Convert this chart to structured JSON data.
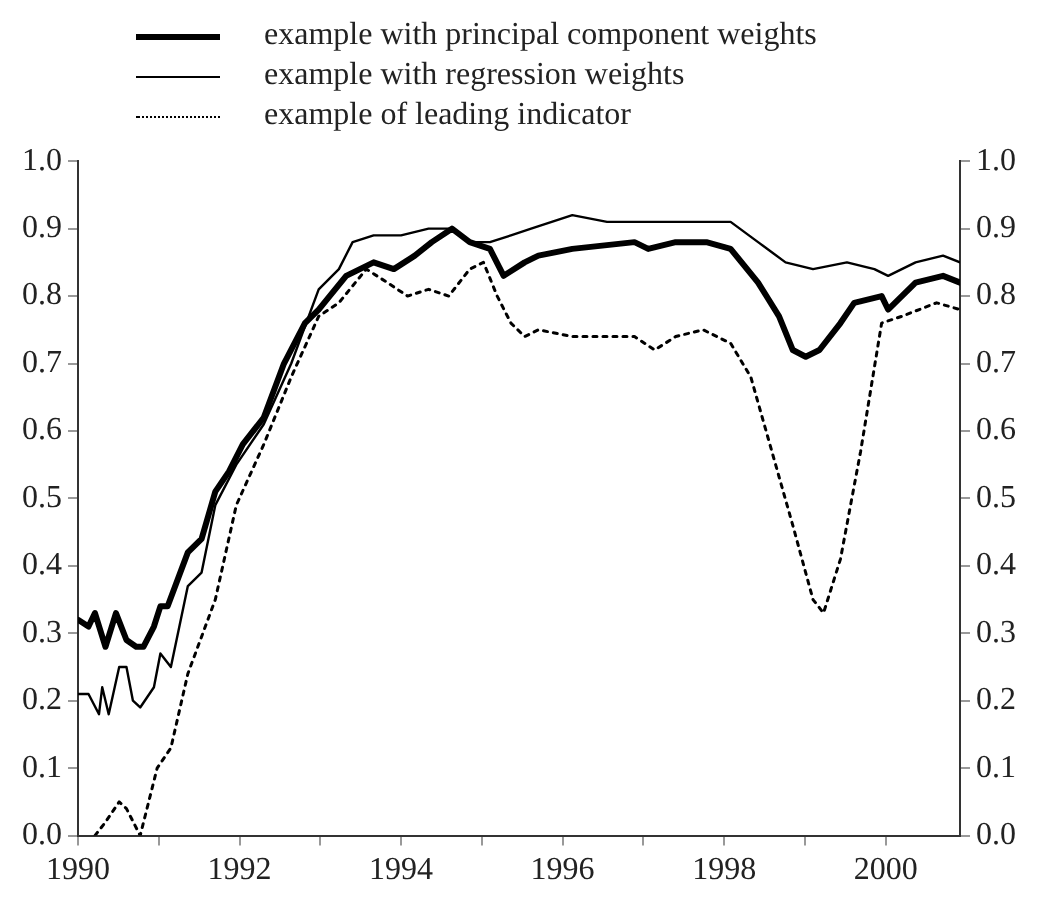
{
  "chart_data": {
    "type": "line",
    "legend": "top left",
    "grid": false,
    "marker": "none",
    "xlim": [
      1990,
      2000.92
    ],
    "xticks": [
      1990,
      {
        "value": 1991,
        "label": null
      },
      1992,
      {
        "value": 1993,
        "label": null
      },
      1994,
      {
        "value": 1995,
        "label": null
      },
      1996,
      {
        "value": 1997,
        "label": null
      },
      1998,
      {
        "value": 1999,
        "label": null
      },
      2000
    ],
    "ylim": [
      0,
      1
    ],
    "yticks": [
      {
        "value": 0,
        "label": "0.0"
      },
      0.1,
      0.2,
      0.3,
      0.4,
      0.5,
      0.6,
      0.7,
      0.8,
      0.9,
      {
        "value": 1,
        "label": "1.0"
      }
    ],
    "y2lim": [
      0,
      1
    ],
    "y2ticks": [
      {
        "value": 0,
        "label": "0.0"
      },
      0.1,
      0.2,
      0.3,
      0.4,
      0.5,
      0.6,
      0.7,
      0.8,
      0.9,
      {
        "value": 1,
        "label": "1.0"
      }
    ],
    "series": [
      {
        "name": "example with principal component weights",
        "color": "#000000",
        "line_style": "solid",
        "x": [
          1990.0,
          1990.13,
          1990.21,
          1990.34,
          1990.47,
          1990.6,
          1990.72,
          1990.81,
          1990.94,
          1991.02,
          1991.11,
          1991.36,
          1991.53,
          1991.7,
          1991.87,
          1992.04,
          1992.3,
          1992.55,
          1992.81,
          1992.98,
          1993.32,
          1993.66,
          1993.91,
          1994.17,
          1994.38,
          1994.63,
          1994.85,
          1995.1,
          1995.27,
          1995.53,
          1995.7,
          1996.12,
          1996.89,
          1997.06,
          1997.4,
          1997.78,
          1998.08,
          1998.42,
          1998.68,
          1998.85,
          1999.01,
          1999.18,
          1999.44,
          1999.61,
          1999.95,
          2000.03,
          2000.37,
          2000.71,
          2000.92
        ],
        "values": [
          0.32,
          0.31,
          0.33,
          0.28,
          0.33,
          0.29,
          0.28,
          0.28,
          0.31,
          0.34,
          0.34,
          0.42,
          0.44,
          0.51,
          0.54,
          0.58,
          0.62,
          0.7,
          0.76,
          0.78,
          0.83,
          0.85,
          0.84,
          0.86,
          0.88,
          0.9,
          0.88,
          0.87,
          0.83,
          0.85,
          0.86,
          0.87,
          0.88,
          0.87,
          0.88,
          0.88,
          0.87,
          0.82,
          0.77,
          0.72,
          0.71,
          0.72,
          0.76,
          0.79,
          0.8,
          0.78,
          0.82,
          0.83,
          0.82
        ]
      },
      {
        "name": "example with regression weights",
        "color": "#000000",
        "line_style": "solid",
        "x": [
          1990.0,
          1990.13,
          1990.26,
          1990.3,
          1990.38,
          1990.51,
          1990.6,
          1990.68,
          1990.77,
          1990.94,
          1991.02,
          1991.15,
          1991.36,
          1991.53,
          1991.7,
          1991.96,
          1992.3,
          1992.64,
          1992.98,
          1993.23,
          1993.4,
          1993.66,
          1994.0,
          1994.34,
          1994.63,
          1994.85,
          1995.1,
          1995.36,
          1995.61,
          1996.12,
          1996.55,
          1997.4,
          1998.08,
          1998.42,
          1998.76,
          1999.1,
          1999.52,
          1999.86,
          2000.03,
          2000.37,
          2000.71,
          2000.92
        ],
        "values": [
          0.21,
          0.21,
          0.18,
          0.22,
          0.18,
          0.25,
          0.25,
          0.2,
          0.19,
          0.22,
          0.27,
          0.25,
          0.37,
          0.39,
          0.49,
          0.55,
          0.61,
          0.7,
          0.81,
          0.84,
          0.88,
          0.89,
          0.89,
          0.9,
          0.9,
          0.88,
          0.88,
          0.89,
          0.9,
          0.92,
          0.91,
          0.91,
          0.91,
          0.88,
          0.85,
          0.84,
          0.85,
          0.84,
          0.83,
          0.85,
          0.86,
          0.85
        ]
      },
      {
        "name": "example of leading indicator",
        "color": "#000000",
        "line_style": "dotted",
        "x": [
          1990.21,
          1990.34,
          1990.51,
          1990.6,
          1990.77,
          1990.98,
          1991.15,
          1991.36,
          1991.7,
          1991.96,
          1992.3,
          1992.64,
          1992.98,
          1993.23,
          1993.57,
          1993.83,
          1994.08,
          1994.34,
          1994.59,
          1994.85,
          1995.02,
          1995.19,
          1995.36,
          1995.53,
          1995.7,
          1996.12,
          1996.89,
          1997.14,
          1997.4,
          1997.74,
          1998.08,
          1998.33,
          1998.59,
          1998.85,
          1999.1,
          1999.23,
          1999.44,
          1999.69,
          1999.95,
          2000.2,
          2000.63,
          2000.92
        ],
        "values": [
          0.0,
          0.02,
          0.05,
          0.04,
          0.0,
          0.1,
          0.13,
          0.24,
          0.35,
          0.49,
          0.58,
          0.68,
          0.77,
          0.79,
          0.84,
          0.82,
          0.8,
          0.81,
          0.8,
          0.84,
          0.85,
          0.8,
          0.76,
          0.74,
          0.75,
          0.74,
          0.74,
          0.72,
          0.74,
          0.75,
          0.73,
          0.68,
          0.57,
          0.46,
          0.35,
          0.33,
          0.41,
          0.57,
          0.76,
          0.77,
          0.79,
          0.78
        ]
      }
    ]
  }
}
